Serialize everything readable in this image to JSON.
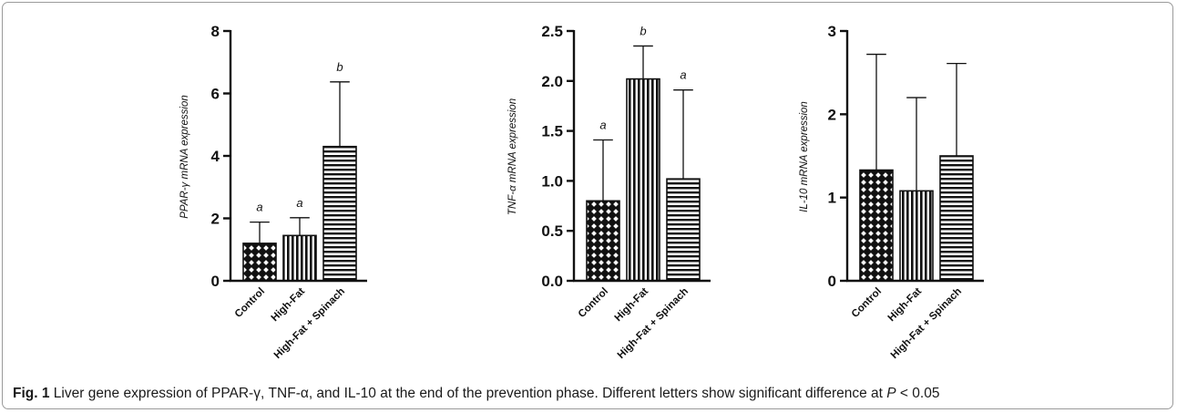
{
  "caption": {
    "label": "Fig. 1",
    "text_main": " Liver gene expression of PPAR-γ, TNF-α, and IL-10 at the end of the prevention phase. Different letters show significant difference at ",
    "p_symbol": "P",
    "text_tail": " < 0.05"
  },
  "colors": {
    "bar_stroke": "#111111",
    "axis": "#111111",
    "fill_pattern": "#000000"
  },
  "chart_data": [
    {
      "type": "bar",
      "title": "",
      "xlabel": "",
      "ylabel": "PPAR-γ mRNA expression",
      "ylim": [
        0,
        8
      ],
      "yticks": [
        0,
        2,
        4,
        6,
        8
      ],
      "ytick_labels": [
        "0",
        "2",
        "4",
        "6",
        "8"
      ],
      "categories": [
        "Control",
        "High-Fat",
        "High-Fat + Spinach"
      ],
      "values": [
        1.2,
        1.45,
        4.3
      ],
      "error_upper": [
        1.88,
        2.02,
        6.37
      ],
      "significance": [
        "a",
        "a",
        "b"
      ],
      "patterns": [
        "checker",
        "vertical",
        "horizontal"
      ],
      "grid": false
    },
    {
      "type": "bar",
      "title": "",
      "xlabel": "",
      "ylabel": "TNF-α mRNA expression",
      "ylim": [
        0,
        2.5
      ],
      "yticks": [
        0,
        0.5,
        1.0,
        1.5,
        2.0,
        2.5
      ],
      "ytick_labels": [
        "0.0",
        "0.5",
        "1.0",
        "1.5",
        "2.0",
        "2.5"
      ],
      "categories": [
        "Control",
        "High-Fat",
        "High-Fat + Spinach"
      ],
      "values": [
        0.8,
        2.02,
        1.02
      ],
      "error_upper": [
        1.41,
        2.35,
        1.91
      ],
      "significance": [
        "a",
        "b",
        "a"
      ],
      "patterns": [
        "checker",
        "vertical",
        "horizontal"
      ],
      "grid": false
    },
    {
      "type": "bar",
      "title": "",
      "xlabel": "",
      "ylabel": "IL-10 mRNA expression",
      "ylim": [
        0,
        3
      ],
      "yticks": [
        0,
        1,
        2,
        3
      ],
      "ytick_labels": [
        "0",
        "1",
        "2",
        "3"
      ],
      "categories": [
        "Control",
        "High-Fat",
        "High-Fat + Spinach"
      ],
      "values": [
        1.33,
        1.08,
        1.5
      ],
      "error_upper": [
        2.72,
        2.2,
        2.61
      ],
      "significance": [
        "",
        "",
        ""
      ],
      "patterns": [
        "checker",
        "vertical",
        "horizontal"
      ],
      "grid": false
    }
  ]
}
